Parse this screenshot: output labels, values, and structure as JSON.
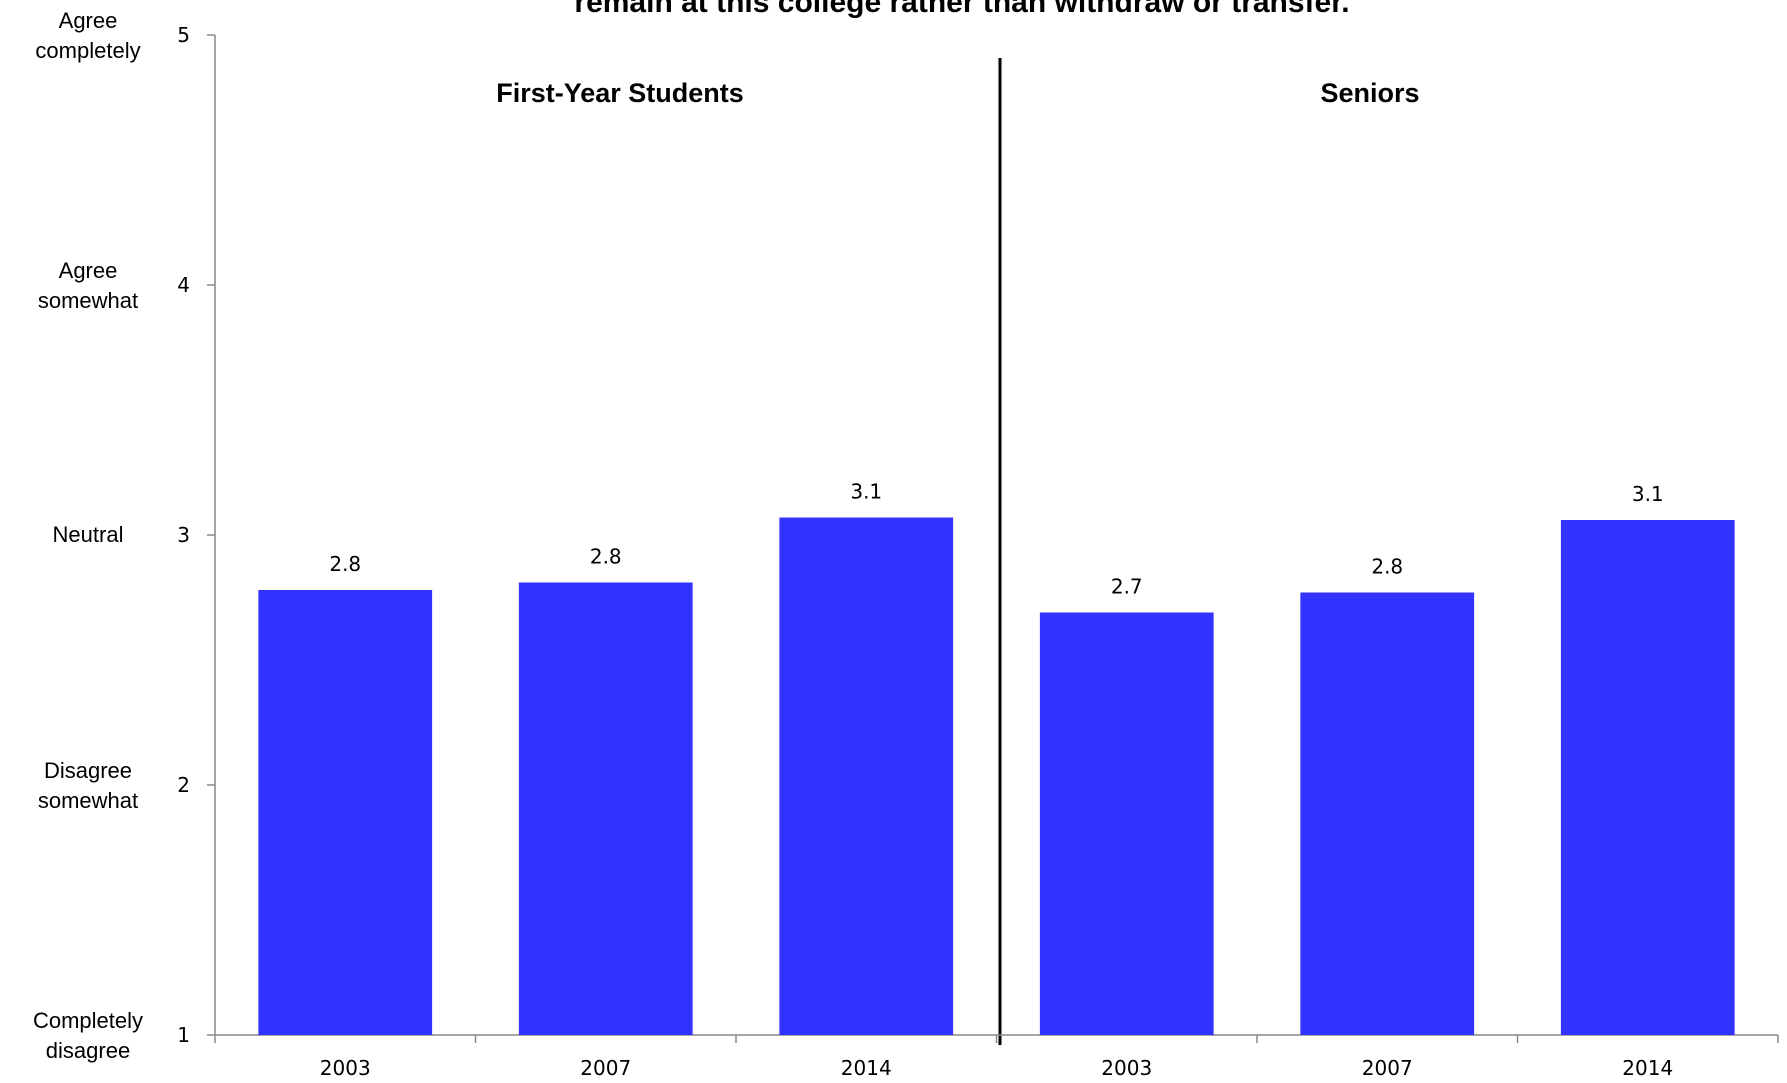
{
  "chart_data": {
    "type": "bar",
    "title": "remain at this college rather than withdraw or transfer.",
    "ylim": [
      1,
      5
    ],
    "y_ticks": [
      1,
      2,
      3,
      4,
      5
    ],
    "y_tick_labels": [
      {
        "value": 5,
        "lines": [
          "Agree",
          "completely"
        ]
      },
      {
        "value": 4,
        "lines": [
          "Agree",
          "somewhat"
        ]
      },
      {
        "value": 3,
        "lines": [
          "Neutral"
        ]
      },
      {
        "value": 2,
        "lines": [
          "Disagree",
          "somewhat"
        ]
      },
      {
        "value": 1,
        "lines": [
          "Completely",
          "disagree"
        ]
      }
    ],
    "groups": [
      "First-Year Students",
      "Seniors"
    ],
    "categories": [
      "2003",
      "2007",
      "2014",
      "2003",
      "2007",
      "2014"
    ],
    "values": [
      2.78,
      2.81,
      3.07,
      2.69,
      2.77,
      3.06
    ],
    "value_labels": [
      "2.8",
      "2.8",
      "3.1",
      "2.7",
      "2.8",
      "3.1"
    ],
    "bar_color": "#3333ff",
    "grid": false,
    "legend": "none"
  }
}
